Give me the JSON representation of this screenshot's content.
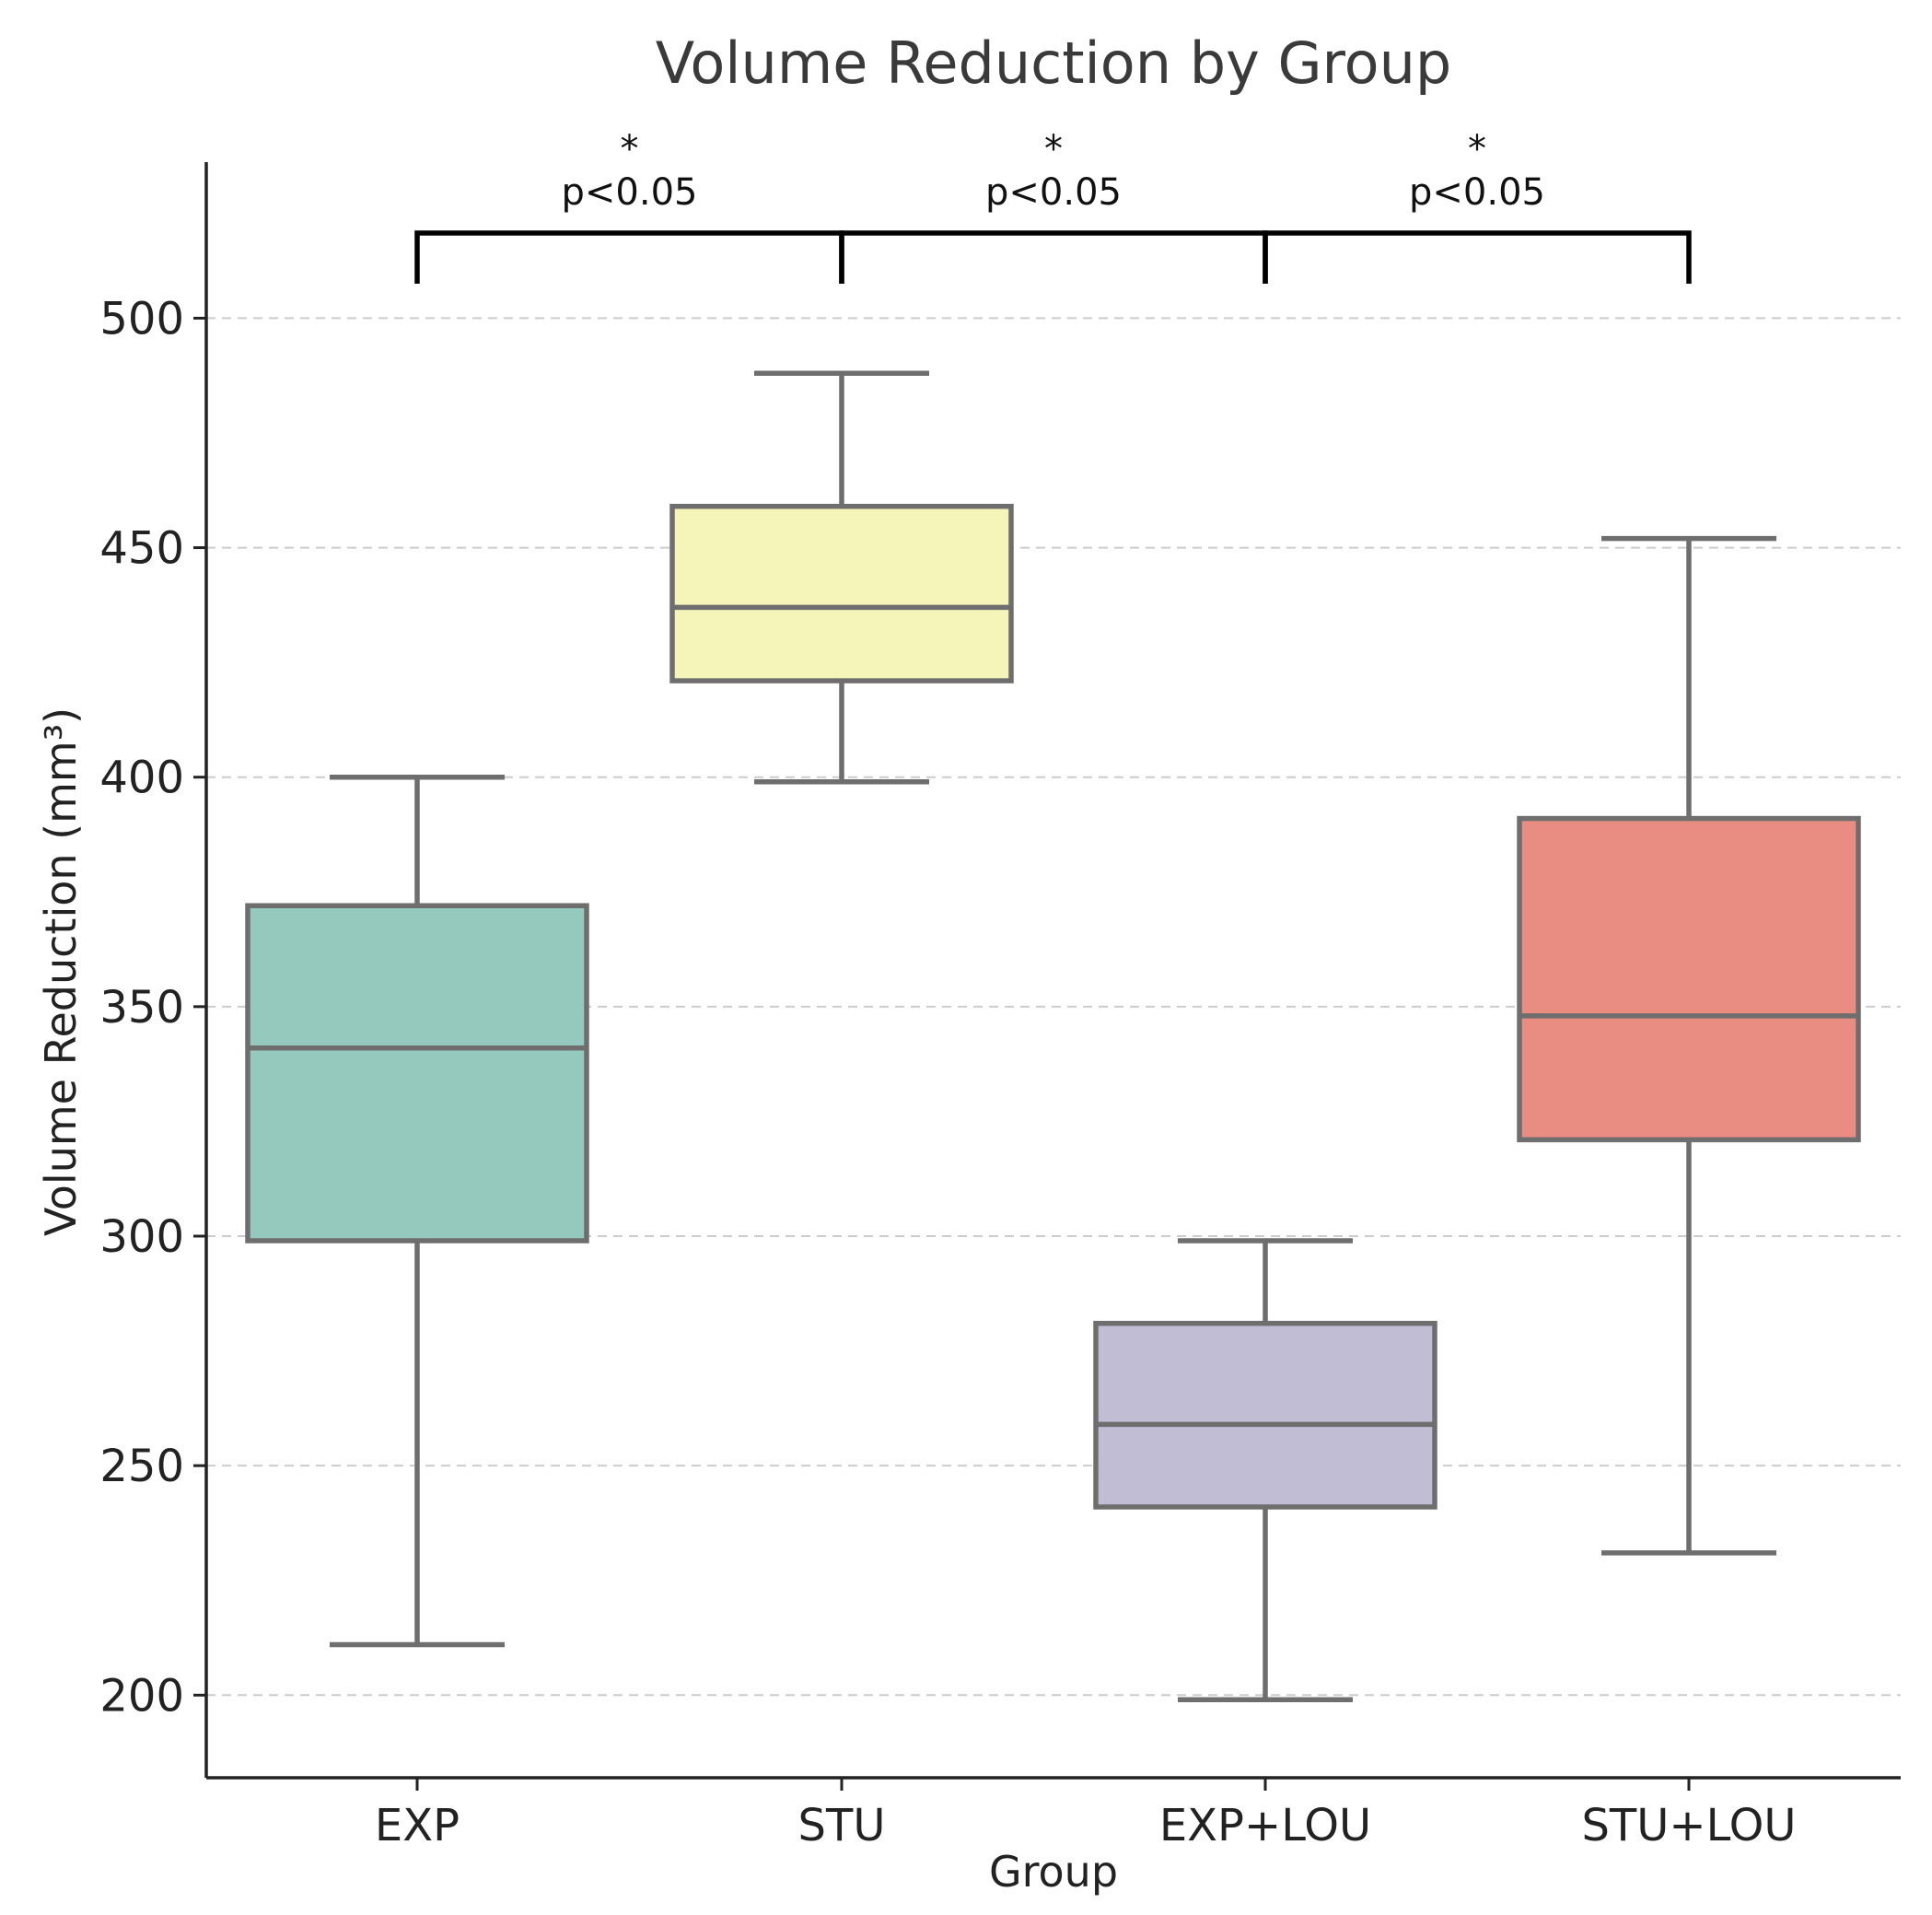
{
  "chart_data": {
    "type": "boxplot",
    "title": "Volume Reduction by Group",
    "xlabel": "Group",
    "ylabel": "Volume Reduction (mm³)",
    "ylim": [
      182,
      534
    ],
    "yticks": [
      200,
      250,
      300,
      350,
      400,
      450,
      500
    ],
    "grid": "horizontal dashed",
    "categories": [
      "EXP",
      "STU",
      "EXP+LOU",
      "STU+LOU"
    ],
    "boxes": [
      {
        "group": "EXP",
        "whisker_low": 211,
        "q1": 299,
        "median": 341,
        "q3": 372,
        "whisker_high": 400,
        "color": "#96c9be"
      },
      {
        "group": "STU",
        "whisker_low": 399,
        "q1": 421,
        "median": 437,
        "q3": 459,
        "whisker_high": 488,
        "color": "#f6f5b9"
      },
      {
        "group": "EXP+LOU",
        "whisker_low": 199,
        "q1": 241,
        "median": 259,
        "q3": 281,
        "whisker_high": 299,
        "color": "#c0bdd5"
      },
      {
        "group": "STU+LOU",
        "whisker_low": 231,
        "q1": 321,
        "median": 348,
        "q3": 391,
        "whisker_high": 452,
        "color": "#e98c81"
      }
    ],
    "significance": [
      {
        "from": "EXP",
        "to": "STU",
        "star": "*",
        "label": "p<0.05"
      },
      {
        "from": "STU",
        "to": "EXP+LOU",
        "star": "*",
        "label": "p<0.05"
      },
      {
        "from": "EXP+LOU",
        "to": "STU+LOU",
        "star": "*",
        "label": "p<0.05"
      }
    ]
  }
}
